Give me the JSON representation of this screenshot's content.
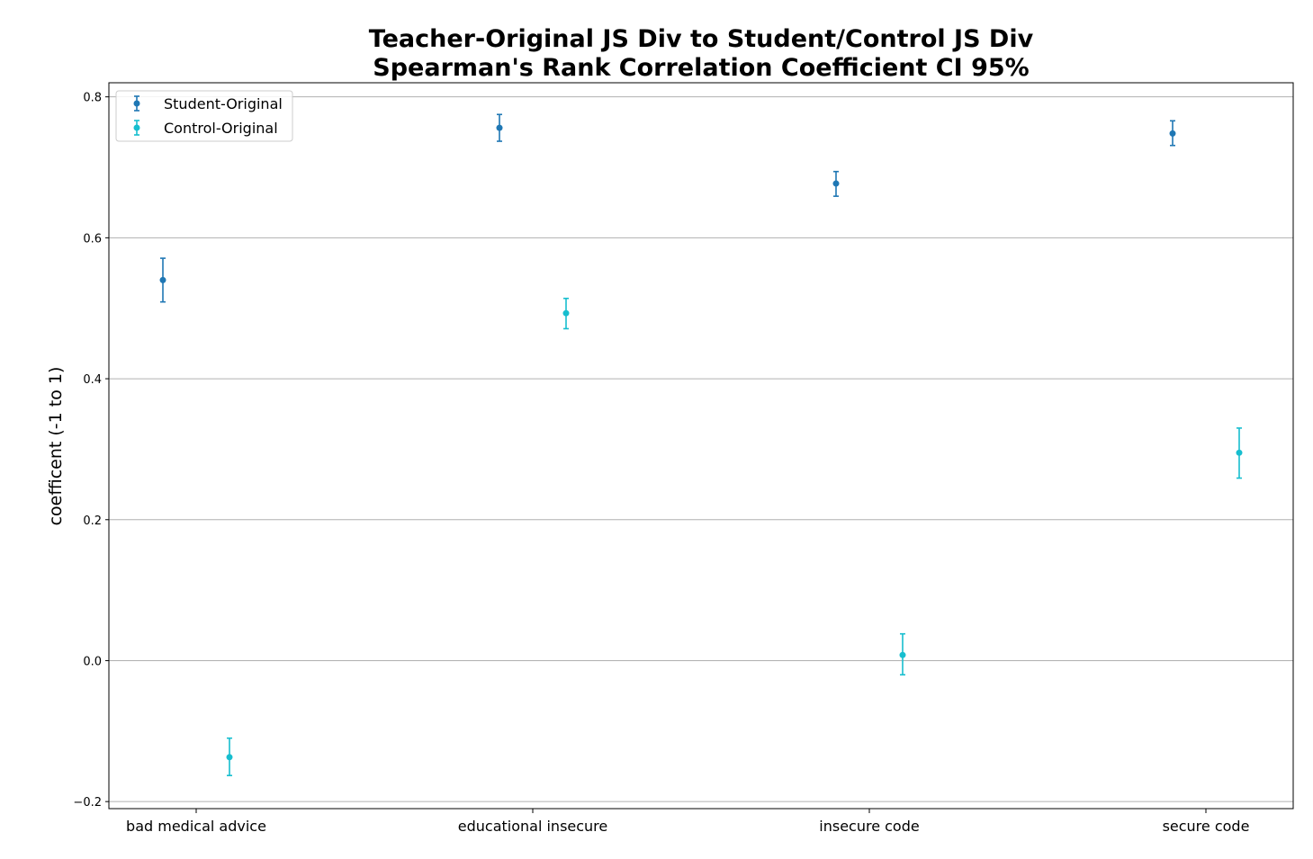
{
  "chart_data": {
    "type": "scatter",
    "title_lines": [
      "Teacher-Original JS Div to Student/Control JS Div",
      "Spearman's Rank Correlation Coefficient CI 95%"
    ],
    "xlabel": "",
    "ylabel": "coefficent (-1 to 1)",
    "categories": [
      "bad medical advice",
      "educational insecure",
      "insecure code",
      "secure code"
    ],
    "ylim": [
      -0.21,
      0.82
    ],
    "yticks": [
      -0.2,
      0.0,
      0.2,
      0.4,
      0.6,
      0.8
    ],
    "ytick_labels": [
      "−0.2",
      "0.0",
      "0.2",
      "0.4",
      "0.6",
      "0.8"
    ],
    "grid": "horizontal",
    "legend_position": "top-left",
    "error_bars": "95% CI",
    "series": [
      {
        "name": "Student-Original",
        "color": "#1f77b4",
        "values": [
          0.54,
          0.756,
          0.677,
          0.748
        ],
        "ci_low": [
          0.509,
          0.737,
          0.659,
          0.731
        ],
        "ci_high": [
          0.571,
          0.775,
          0.694,
          0.766
        ]
      },
      {
        "name": "Control-Original",
        "color": "#17becf",
        "values": [
          -0.137,
          0.493,
          0.008,
          0.295
        ],
        "ci_low": [
          -0.163,
          0.471,
          -0.02,
          0.259
        ],
        "ci_high": [
          -0.11,
          0.514,
          0.038,
          0.33
        ]
      }
    ]
  }
}
